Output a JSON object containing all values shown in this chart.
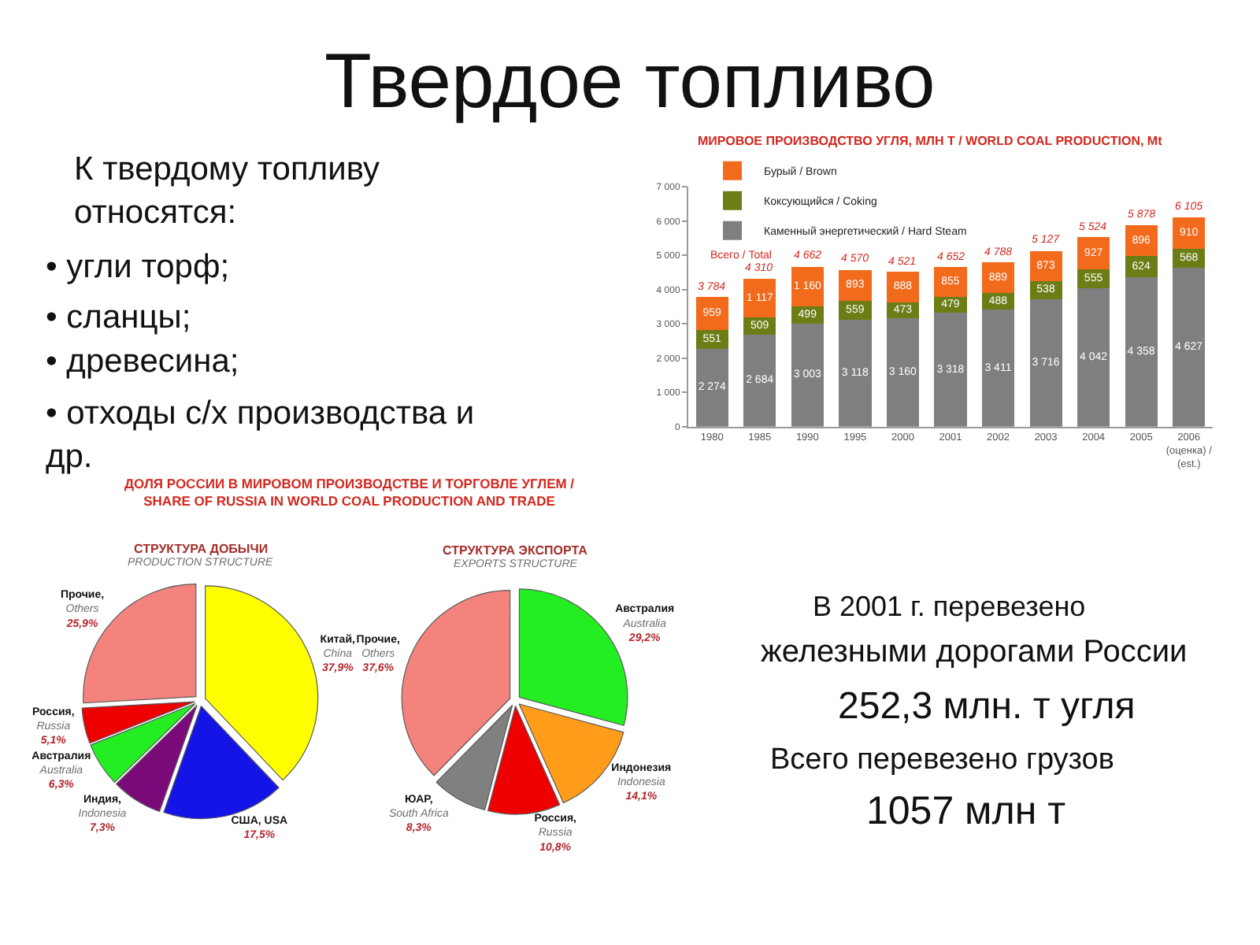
{
  "chart_data": [
    {
      "type": "other",
      "title": "Твердое топливо",
      "annotations": [
        "К твердому топливу\nотносятся:",
        "• угли торф;",
        "• сланцы;",
        "• древесина;",
        "• отходы с/х производства и\nдр."
      ]
    },
    {
      "type": "bar",
      "title": "МИРОВОЕ ПРОИЗВОДСТВО УГЛЯ, МЛН Т / WORLD COAL PRODUCTION, Mt",
      "categories": [
        "1980",
        "1985",
        "1990",
        "1995",
        "2000",
        "2001",
        "2002",
        "2003",
        "2004",
        "2005",
        "2006\n(оценка) /\n(est.)"
      ],
      "stacked": true,
      "series": [
        {
          "name": "Каменный энергетический / Hard Steam",
          "color": "#7f7f7f",
          "values": [
            2274,
            2684,
            3003,
            3118,
            3160,
            3318,
            3411,
            3716,
            4042,
            4358,
            4627
          ]
        },
        {
          "name": "Коксующийся / Coking",
          "color": "#6b7d14",
          "values": [
            551,
            509,
            499,
            559,
            473,
            479,
            488,
            538,
            555,
            624,
            568
          ]
        },
        {
          "name": "Бурый / Brown",
          "color": "#f26a1b",
          "values": [
            959,
            1117,
            1160,
            893,
            888,
            855,
            889,
            873,
            927,
            896,
            910
          ]
        }
      ],
      "data_labels": true,
      "totals": [
        "3 784",
        "4 310",
        "4 662",
        "4 570",
        "4 521",
        "4 652",
        "4 788",
        "5 127",
        "5 524",
        "5 878",
        "6 105"
      ],
      "ylim": [
        0,
        7000
      ],
      "yticks": [
        0,
        {
          "value": 1000,
          "label": "1 000"
        },
        {
          "value": 2000,
          "label": "2 000"
        },
        {
          "value": 3000,
          "label": "3 000"
        },
        {
          "value": 4000,
          "label": "4 000"
        },
        {
          "value": 5000,
          "label": "5 000"
        },
        {
          "value": 6000,
          "label": "6 000"
        },
        {
          "value": 7000,
          "label": "7 000"
        }
      ],
      "legend": "top left",
      "annotations": [
        "Всего / Total"
      ]
    },
    {
      "type": "pie",
      "title": "СТРУКТУРА ДОБЫЧИ",
      "subtitle": "PRODUCTION STRUCTURE",
      "categories": [
        "Китай,\nChina",
        "США, USA",
        "Индия,\nIndonesia",
        "Австралия\nAustralia",
        "Россия,\nRussia",
        "Прочие,\nOthers"
      ],
      "values": [
        37.9,
        17.5,
        7.3,
        6.3,
        5.1,
        25.9
      ],
      "value_labels": [
        "37,9%",
        "17,5%",
        "7,3%",
        "6,3%",
        "5,1%",
        "25,9%"
      ],
      "colors": [
        "#ffff00",
        "#1414e6",
        "#7a0a7a",
        "#22ee22",
        "#ee0000",
        "#f4837d"
      ],
      "annotations": [
        "ДОЛЯ РОССИИ В МИРОВОМ ПРОИЗВОДСТВЕ И ТОРГОВЛЕ УГЛЕМ /\nSHARE OF RUSSIA IN WORLD COAL PRODUCTION AND TRADE"
      ]
    },
    {
      "type": "pie",
      "title": "СТРУКТУРА ЭКСПОРТА",
      "subtitle": "EXPORTS STRUCTURE",
      "categories": [
        "Австралия\nAustralia",
        "Индонезия\nIndonesia",
        "Россия,\nRussia",
        "ЮАР,\nSouth Africa",
        "Прочие,\nOthers"
      ],
      "values": [
        29.2,
        14.1,
        10.8,
        8.3,
        37.6
      ],
      "value_labels": [
        "29,2%",
        "14,1%",
        "10,8%",
        "8,3%",
        "37,6%"
      ],
      "colors": [
        "#22ee22",
        "#ff9c1a",
        "#ee0000",
        "#808080",
        "#f4837d"
      ]
    },
    {
      "type": "other",
      "annotations": [
        "В 2001 г. перевезено",
        "железными дорогами России",
        "252,3 млн. т угля",
        "Всего перевезено грузов",
        "1057 млн т"
      ]
    }
  ]
}
